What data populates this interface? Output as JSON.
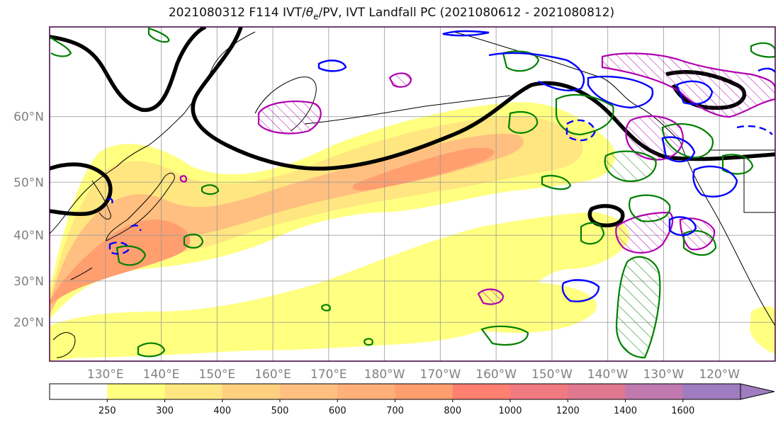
{
  "title": {
    "prefix": "2021080312 F114 IVT/",
    "theta": "θ",
    "theta_sub": "e",
    "suffix": "/PV, IVT Landfall PC (2021080612 - 2021080812)"
  },
  "map": {
    "lon_range": [
      120,
      250
    ],
    "lat_range": [
      10,
      70
    ],
    "lat_labels": [
      {
        "lat": 60,
        "text": "60°N"
      },
      {
        "lat": 50,
        "text": "50°N"
      },
      {
        "lat": 40,
        "text": "40°N"
      },
      {
        "lat": 30,
        "text": "30°N"
      },
      {
        "lat": 20,
        "text": "20°N"
      }
    ],
    "lon_labels": [
      {
        "lon": 130,
        "text": "130°E"
      },
      {
        "lon": 140,
        "text": "140°E"
      },
      {
        "lon": 150,
        "text": "150°E"
      },
      {
        "lon": 160,
        "text": "160°E"
      },
      {
        "lon": 170,
        "text": "170°E"
      },
      {
        "lon": 180,
        "text": "180°W"
      },
      {
        "lon": 190,
        "text": "170°W"
      },
      {
        "lon": 200,
        "text": "160°W"
      },
      {
        "lon": 210,
        "text": "150°W"
      },
      {
        "lon": 220,
        "text": "140°W"
      },
      {
        "lon": 230,
        "text": "130°W"
      },
      {
        "lon": 240,
        "text": "120°W"
      }
    ],
    "grid": true
  },
  "colorbar": {
    "levels": [
      "250",
      "300",
      "400",
      "500",
      "600",
      "700",
      "800",
      "1000",
      "1200",
      "1400",
      "1600"
    ],
    "colors": [
      "#ffffff",
      "#ffff80",
      "#ffe680",
      "#ffd080",
      "#ffbf80",
      "#ffb07a",
      "#ff9f70",
      "#ff8070",
      "#f07a80",
      "#e07890",
      "#c07ab0",
      "#a07cc0"
    ],
    "extend": "max"
  },
  "contour_colors": {
    "ivt_shade_base": "#ffff80",
    "jet_core": "#ff8c70",
    "theta_e": "#000000",
    "pv_positive": "#008000",
    "pv_negative": "#0000ff",
    "landfall_pc": "#b000b0",
    "coast": "#000000"
  }
}
